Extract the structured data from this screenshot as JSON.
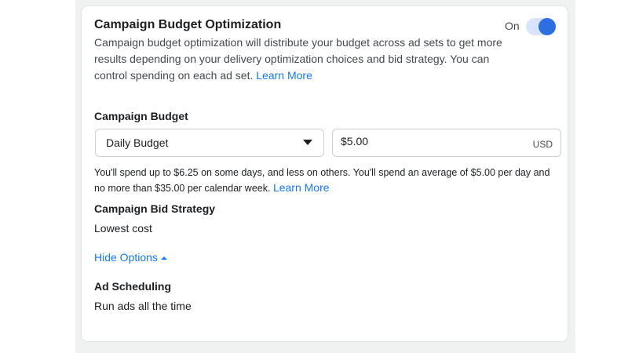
{
  "cbo": {
    "title": "Campaign Budget Optimization",
    "toggle_label": "On",
    "toggle_on": true,
    "description": "Campaign budget optimization will distribute your budget across ad sets to get more results depending on your delivery optimization choices and bid strategy. You can control spending on each ad set.",
    "learn_more": "Learn More"
  },
  "budget": {
    "label": "Campaign Budget",
    "type_selected": "Daily Budget",
    "amount": "$5.00",
    "currency": "USD",
    "help_text": "You'll spend up to $6.25 on some days, and less on others. You'll spend an average of $5.00 per day and no more than $35.00 per calendar week.",
    "learn_more": "Learn More"
  },
  "bid_strategy": {
    "label": "Campaign Bid Strategy",
    "value": "Lowest cost"
  },
  "hide_options": "Hide Options",
  "scheduling": {
    "label": "Ad Scheduling",
    "value": "Run ads all the time"
  },
  "colors": {
    "accent": "#1877f2",
    "toggle": "#2d6fe0"
  }
}
